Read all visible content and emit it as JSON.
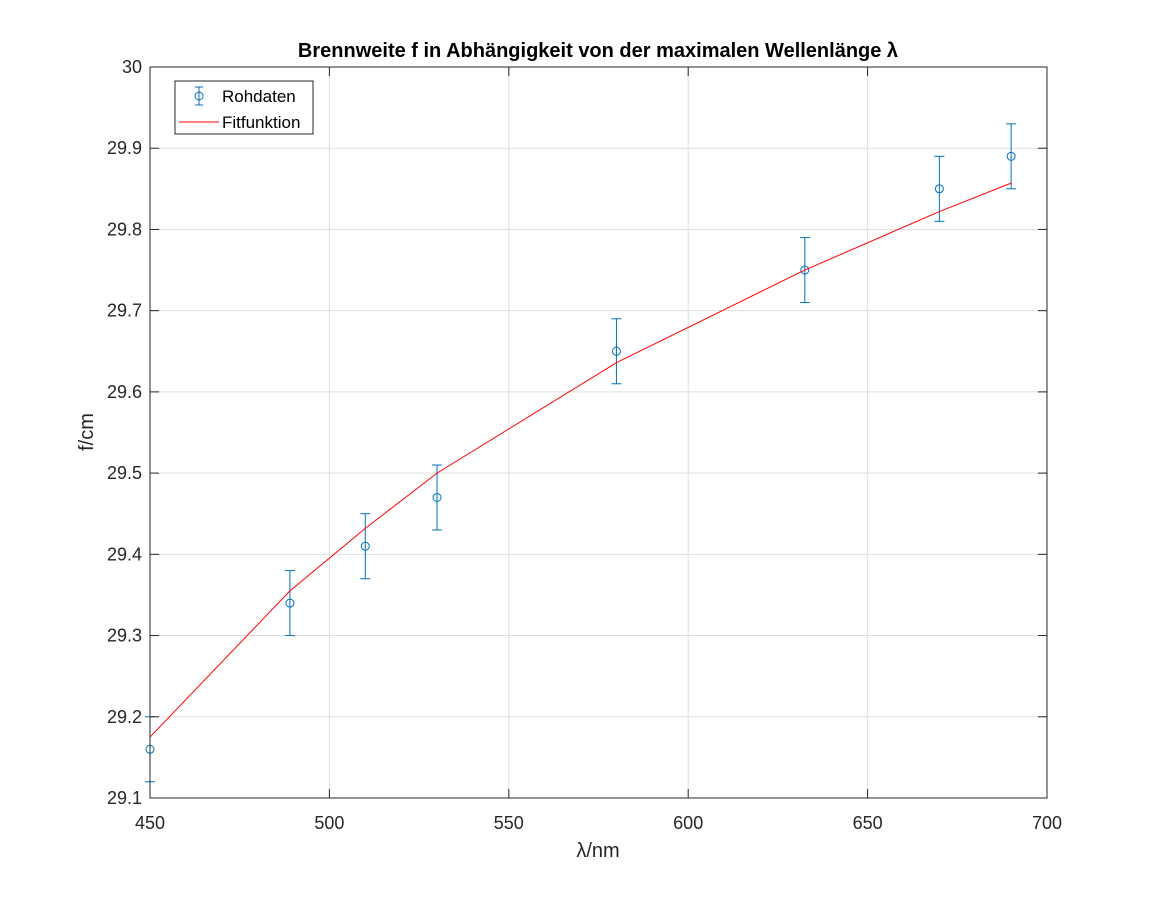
{
  "chart_data": {
    "type": "scatter",
    "title": "Brennweite f in Abhängigkeit von der maximalen Wellenlänge λ",
    "xlabel": "λ/nm",
    "ylabel": "f/cm",
    "xlim": [
      450,
      700
    ],
    "ylim": [
      29.1,
      30
    ],
    "xticks": [
      450,
      500,
      550,
      600,
      650,
      700
    ],
    "yticks": [
      29.1,
      29.2,
      29.3,
      29.4,
      29.5,
      29.6,
      29.7,
      29.8,
      29.9,
      30
    ],
    "xtick_labels": [
      "450",
      "500",
      "550",
      "600",
      "650",
      "700"
    ],
    "ytick_labels": [
      "29.1",
      "29.2",
      "29.3",
      "29.4",
      "29.5",
      "29.6",
      "29.7",
      "29.8",
      "29.9",
      "30"
    ],
    "grid": true,
    "legend_position": "top-left",
    "series": [
      {
        "name": "Rohdaten",
        "kind": "errorbar",
        "color": "#0072bd",
        "x": [
          450,
          489,
          510,
          530,
          580,
          632.5,
          670,
          690
        ],
        "y": [
          29.16,
          29.34,
          29.41,
          29.47,
          29.65,
          29.75,
          29.85,
          29.89
        ],
        "err": [
          0.04,
          0.04,
          0.04,
          0.04,
          0.04,
          0.04,
          0.04,
          0.04
        ]
      },
      {
        "name": "Fitfunktion",
        "kind": "line",
        "color": "#ff0000",
        "x": [
          450,
          489,
          510,
          530,
          580,
          632.5,
          670,
          690
        ],
        "y": [
          29.175,
          29.355,
          29.432,
          29.5,
          29.636,
          29.75,
          29.822,
          29.857
        ]
      }
    ]
  }
}
